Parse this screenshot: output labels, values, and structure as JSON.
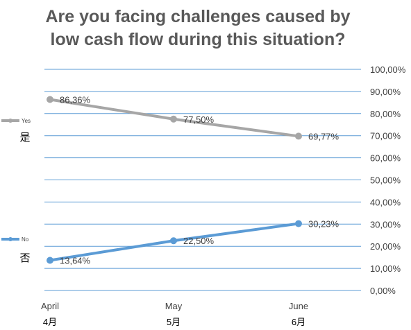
{
  "chart_data": {
    "type": "line",
    "title_lines": [
      "Are you facing challenges caused by",
      "low cash flow during this situation?"
    ],
    "categories": [
      "April",
      "May",
      "June"
    ],
    "categories_sub": [
      "4月",
      "5月",
      "6月"
    ],
    "series": [
      {
        "name": "Yes",
        "name_sub": "是",
        "color": "#a6a6a6",
        "values": [
          86.36,
          77.5,
          69.77
        ],
        "labels": [
          "86,36%",
          "77,50%",
          "69,77%"
        ]
      },
      {
        "name": "No",
        "name_sub": "否",
        "color": "#5b9bd5",
        "values": [
          13.64,
          22.5,
          30.23
        ],
        "labels": [
          "13,64%",
          "22,50%",
          "30,23%"
        ]
      }
    ],
    "ylim": [
      0,
      100
    ],
    "yticks": [
      "0,00%",
      "10,00%",
      "20,00%",
      "30,00%",
      "40,00%",
      "50,00%",
      "60,00%",
      "70,00%",
      "80,00%",
      "90,00%",
      "100,00%"
    ],
    "yaxis_position": "right",
    "grid": true,
    "gridline_color": "#5b9bd5",
    "legend_position": "left"
  }
}
